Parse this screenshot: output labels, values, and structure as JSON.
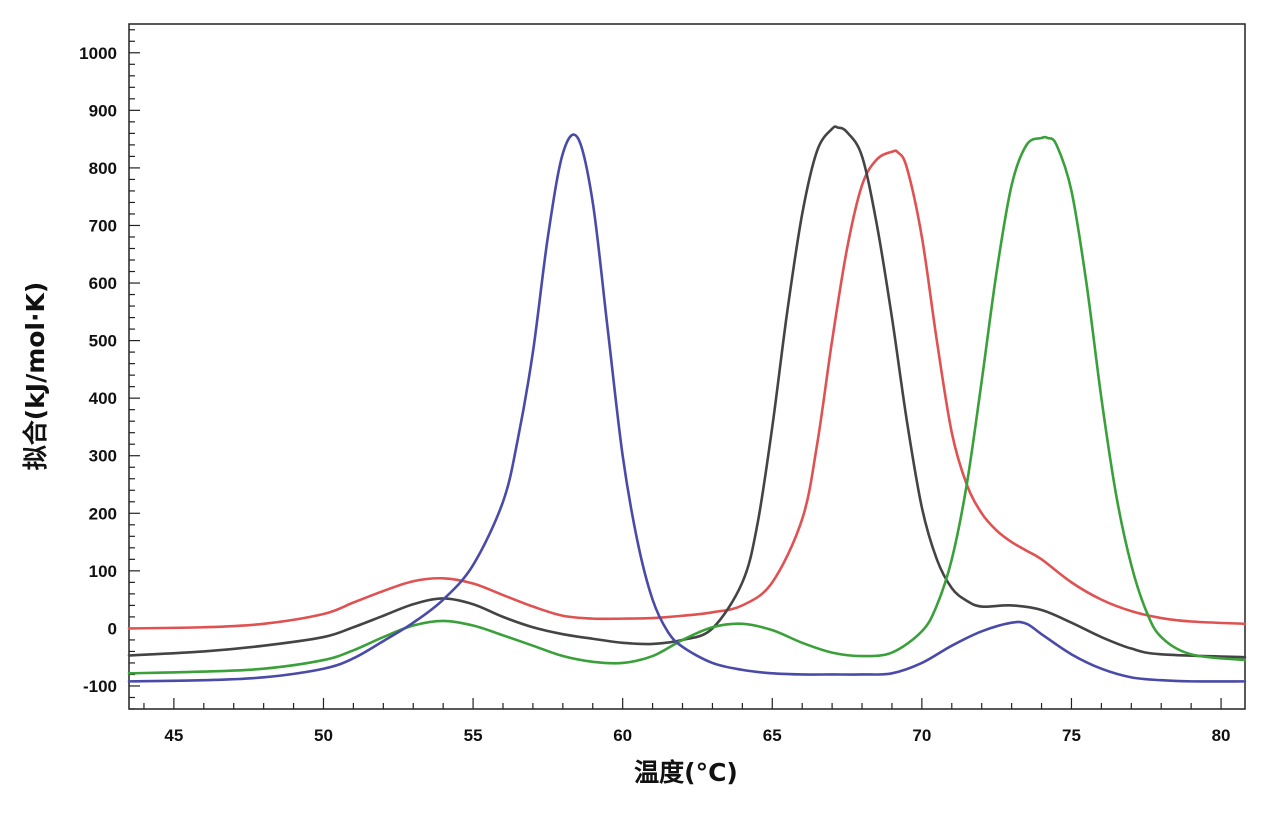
{
  "chart_data": {
    "type": "line",
    "title": "",
    "xlabel": "温度(°C)",
    "ylabel": "拟合(kJ/mol·K)",
    "xlim": [
      43.5,
      80.8
    ],
    "ylim": [
      -140,
      1050
    ],
    "xticks": [
      45,
      50,
      55,
      60,
      65,
      70,
      75,
      80
    ],
    "yticks": [
      -100,
      0,
      100,
      200,
      300,
      400,
      500,
      600,
      700,
      800,
      900,
      1000
    ],
    "grid": false,
    "legend": "none",
    "series": [
      {
        "color": "#e05252",
        "x": [
          43.5,
          46,
          48,
          50,
          51,
          52,
          53,
          54,
          55,
          56,
          57,
          58,
          59,
          60,
          61,
          62,
          63,
          64,
          65,
          66,
          66.5,
          67,
          67.5,
          68,
          68.5,
          69,
          69.2,
          69.5,
          70,
          70.5,
          71,
          71.5,
          72,
          72.5,
          73,
          73.5,
          74,
          75,
          76,
          77,
          78,
          79,
          80.8
        ],
        "y": [
          0,
          2,
          8,
          25,
          45,
          65,
          82,
          87,
          78,
          58,
          38,
          22,
          17,
          17,
          18,
          22,
          28,
          40,
          80,
          190,
          320,
          500,
          660,
          770,
          815,
          828,
          827,
          800,
          680,
          500,
          340,
          250,
          200,
          170,
          150,
          135,
          120,
          80,
          50,
          30,
          18,
          12,
          8
        ]
      },
      {
        "color": "#444444",
        "x": [
          43.5,
          46,
          48,
          50,
          51,
          52,
          53,
          54,
          55,
          56,
          57,
          58,
          59,
          60,
          61,
          62,
          63,
          64,
          64.5,
          65,
          65.5,
          66,
          66.5,
          67,
          67.2,
          67.5,
          68,
          68.5,
          69,
          69.5,
          70,
          70.5,
          71,
          71.5,
          72,
          73,
          74,
          75,
          76,
          77,
          78,
          80.8
        ],
        "y": [
          -47,
          -40,
          -30,
          -15,
          2,
          22,
          42,
          52,
          42,
          20,
          2,
          -10,
          -18,
          -25,
          -27,
          -20,
          0,
          80,
          180,
          350,
          550,
          720,
          830,
          868,
          870,
          862,
          820,
          700,
          540,
          360,
          210,
          120,
          70,
          48,
          38,
          40,
          32,
          10,
          -15,
          -35,
          -45,
          -50
        ]
      },
      {
        "color": "#3aa03a",
        "x": [
          43.5,
          46,
          48,
          50,
          51,
          52,
          53,
          54,
          55,
          56,
          57,
          58,
          59,
          60,
          61,
          62,
          63,
          64,
          65,
          66,
          67,
          68,
          69,
          70,
          70.5,
          71,
          71.5,
          72,
          72.5,
          73,
          73.5,
          74,
          74.2,
          74.5,
          75,
          75.5,
          76,
          76.5,
          77,
          77.5,
          78,
          79,
          80.8
        ],
        "y": [
          -78,
          -75,
          -70,
          -55,
          -38,
          -15,
          5,
          13,
          5,
          -12,
          -30,
          -48,
          -58,
          -60,
          -48,
          -20,
          2,
          8,
          -3,
          -25,
          -42,
          -48,
          -42,
          -5,
          40,
          120,
          250,
          430,
          620,
          770,
          840,
          852,
          852,
          840,
          760,
          600,
          400,
          230,
          110,
          30,
          -15,
          -45,
          -55
        ]
      },
      {
        "color": "#4a4aa8",
        "x": [
          43.5,
          46,
          48,
          50,
          51,
          52,
          53,
          54,
          55,
          56,
          56.5,
          57,
          57.5,
          58,
          58.5,
          59,
          59.5,
          60,
          60.5,
          61,
          61.5,
          62,
          63,
          64,
          65,
          66,
          67,
          68,
          69,
          70,
          71,
          72,
          73,
          73.5,
          74,
          75,
          76,
          77,
          78,
          79,
          80.8
        ],
        "y": [
          -92,
          -90,
          -85,
          -70,
          -52,
          -22,
          10,
          50,
          110,
          220,
          330,
          480,
          680,
          825,
          852,
          740,
          520,
          300,
          150,
          50,
          -5,
          -32,
          -60,
          -72,
          -78,
          -80,
          -80,
          -80,
          -78,
          -60,
          -30,
          -5,
          10,
          8,
          -10,
          -45,
          -70,
          -85,
          -90,
          -92,
          -92
        ]
      }
    ]
  }
}
